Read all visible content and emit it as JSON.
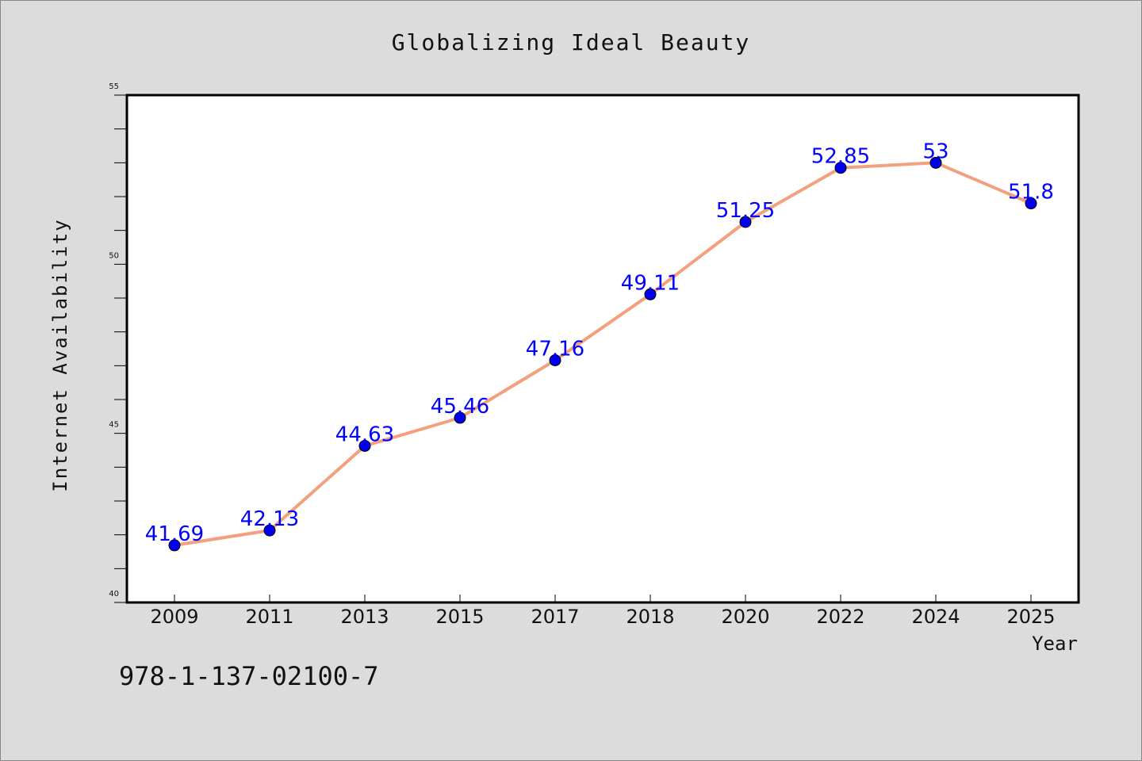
{
  "chart_data": {
    "type": "line",
    "title": "Globalizing Ideal Beauty",
    "xlabel": "Year",
    "ylabel": "Internet Availability",
    "categories": [
      "2009",
      "2011",
      "2013",
      "2015",
      "2017",
      "2018",
      "2020",
      "2022",
      "2024",
      "2025"
    ],
    "values": [
      41.69,
      42.13,
      44.63,
      45.46,
      47.16,
      49.11,
      51.25,
      52.85,
      53,
      51.8
    ],
    "value_labels": [
      "41.69",
      "42.13",
      "44.63",
      "45.46",
      "47.16",
      "49.11",
      "51.25",
      "52.85",
      "53",
      "51.8"
    ],
    "ylim": [
      40,
      55
    ],
    "yticks": [
      "40",
      "45",
      "50",
      "55"
    ],
    "line_color": "#f4a07e",
    "marker_color": "#0000ee",
    "label_color": "#0000ff",
    "grid": false,
    "legend": "none"
  },
  "footer": {
    "isbn": "978-1-137-02100-7"
  }
}
